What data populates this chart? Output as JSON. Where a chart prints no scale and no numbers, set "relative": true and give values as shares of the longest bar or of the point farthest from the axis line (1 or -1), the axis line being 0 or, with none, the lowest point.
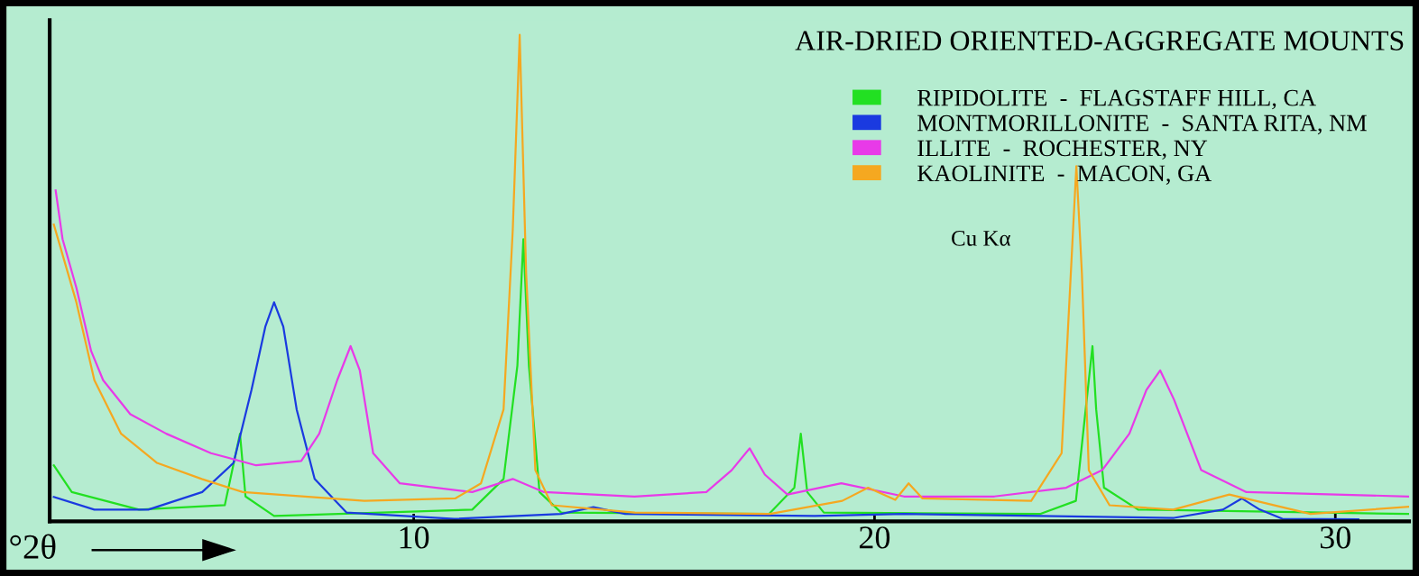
{
  "chart_data": {
    "type": "line",
    "title": "AIR-DRIED ORIENTED-AGGREGATE MOUNTS",
    "xlabel": "°2θ",
    "annotations": [
      "Cu Kα"
    ],
    "relative": true,
    "xlim": [
      2.1,
      31.6
    ],
    "xticks": [
      10,
      20,
      30
    ],
    "tick_labels": "x",
    "grid": false,
    "legend": "top right",
    "marker": "none",
    "line_style": "solid",
    "series": [
      {
        "name": "RIPIDOLITE  -  FLAGSTAFF HILL, CA",
        "color": "#22e022",
        "x": [
          2.19,
          2.58,
          4.04,
          5.9,
          6.23,
          6.35,
          6.97,
          11.27,
          11.95,
          12.25,
          12.38,
          12.5,
          12.73,
          13.2,
          17.71,
          18.26,
          18.4,
          18.54,
          18.9,
          23.59,
          24.37,
          24.65,
          24.73,
          24.81,
          24.98,
          25.72,
          31.6
        ],
        "values": [
          0.115,
          0.06,
          0.024,
          0.033,
          0.18,
          0.051,
          0.011,
          0.024,
          0.087,
          0.32,
          0.58,
          0.32,
          0.06,
          0.018,
          0.015,
          0.069,
          0.18,
          0.06,
          0.018,
          0.015,
          0.042,
          0.29,
          0.36,
          0.23,
          0.069,
          0.024,
          0.015
        ]
      },
      {
        "name": "MONTMORILLONITE  -  SANTA RITA, NM",
        "color": "#1a3ae0",
        "x": [
          2.19,
          3.07,
          4.24,
          5.41,
          6.09,
          6.48,
          6.78,
          6.97,
          7.17,
          7.46,
          7.85,
          8.54,
          10.88,
          13.2,
          13.9,
          14.59,
          18.7,
          20.64,
          26.5,
          27.56,
          27.97,
          28.36,
          28.85,
          30.5
        ],
        "values": [
          0.05,
          0.024,
          0.024,
          0.06,
          0.12,
          0.27,
          0.4,
          0.45,
          0.4,
          0.23,
          0.087,
          0.018,
          0.005,
          0.015,
          0.029,
          0.015,
          0.011,
          0.015,
          0.007,
          0.024,
          0.047,
          0.024,
          0.005,
          0.004
        ]
      },
      {
        "name": "ILLITE  -  ROCHESTER, NY",
        "color": "#e83ae8",
        "x": [
          2.23,
          2.38,
          2.68,
          3.0,
          3.26,
          3.85,
          4.63,
          5.6,
          6.58,
          7.56,
          7.95,
          8.34,
          8.63,
          8.83,
          9.12,
          9.7,
          11.27,
          12.15,
          12.83,
          14.79,
          16.35,
          16.9,
          17.29,
          17.62,
          18.11,
          19.28,
          20.64,
          22.6,
          24.16,
          24.94,
          25.53,
          25.9,
          26.2,
          26.5,
          27.09,
          28.07,
          31.6
        ],
        "values": [
          0.68,
          0.58,
          0.48,
          0.35,
          0.29,
          0.22,
          0.18,
          0.14,
          0.115,
          0.124,
          0.18,
          0.29,
          0.36,
          0.31,
          0.14,
          0.078,
          0.06,
          0.087,
          0.06,
          0.051,
          0.06,
          0.105,
          0.15,
          0.096,
          0.055,
          0.078,
          0.051,
          0.051,
          0.069,
          0.105,
          0.18,
          0.27,
          0.31,
          0.25,
          0.105,
          0.06,
          0.051
        ]
      },
      {
        "name": "KAOLINITE  -  MACON, GA",
        "color": "#f5a820",
        "x": [
          2.19,
          2.68,
          3.07,
          3.65,
          4.43,
          5.4,
          6.29,
          8.93,
          10.9,
          11.46,
          11.95,
          12.15,
          12.3,
          12.44,
          12.64,
          13.0,
          14.8,
          17.73,
          19.3,
          19.86,
          20.45,
          20.74,
          21.04,
          23.4,
          24.06,
          24.26,
          24.38,
          24.5,
          24.65,
          25.1,
          26.48,
          27.7,
          29.46,
          31.6
        ],
        "values": [
          0.61,
          0.45,
          0.29,
          0.18,
          0.12,
          0.087,
          0.06,
          0.042,
          0.047,
          0.078,
          0.23,
          0.6,
          1.0,
          0.51,
          0.105,
          0.033,
          0.018,
          0.015,
          0.042,
          0.069,
          0.044,
          0.078,
          0.047,
          0.042,
          0.14,
          0.51,
          0.73,
          0.51,
          0.105,
          0.033,
          0.024,
          0.055,
          0.015,
          0.03
        ]
      }
    ]
  }
}
